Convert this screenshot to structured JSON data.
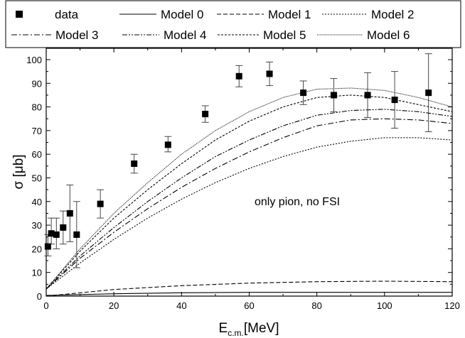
{
  "chart_data": {
    "type": "line",
    "title": "",
    "xlabel": {
      "main": "E",
      "sub": "c.m.",
      "unit": "[MeV]"
    },
    "ylabel": "σ [μb]",
    "xlim": [
      0,
      120
    ],
    "ylim": [
      0,
      105
    ],
    "xticks": [
      0,
      20,
      40,
      60,
      80,
      100,
      120
    ],
    "yticks": [
      0,
      10,
      20,
      30,
      40,
      50,
      60,
      70,
      80,
      90,
      100
    ],
    "grid": false,
    "legend_position": "top",
    "annotation": "only pion, no FSI",
    "data_series": {
      "name": "data",
      "points": [
        {
          "x": 0.5,
          "y": 21,
          "lo": 17,
          "hi": 26
        },
        {
          "x": 1.5,
          "y": 26.5,
          "lo": 22,
          "hi": 33
        },
        {
          "x": 3,
          "y": 26,
          "lo": 20,
          "hi": 33
        },
        {
          "x": 5,
          "y": 29,
          "lo": 22,
          "hi": 36
        },
        {
          "x": 7,
          "y": 35,
          "lo": 23,
          "hi": 47
        },
        {
          "x": 9,
          "y": 26,
          "lo": 12,
          "hi": 40
        },
        {
          "x": 16,
          "y": 39,
          "lo": 33,
          "hi": 45
        },
        {
          "x": 26,
          "y": 56,
          "lo": 52,
          "hi": 60
        },
        {
          "x": 36,
          "y": 64,
          "lo": 61,
          "hi": 67.5
        },
        {
          "x": 47,
          "y": 77,
          "lo": 73.5,
          "hi": 80.5
        },
        {
          "x": 57,
          "y": 93,
          "lo": 88.5,
          "hi": 97.5
        },
        {
          "x": 66,
          "y": 94,
          "lo": 89,
          "hi": 99
        },
        {
          "x": 76,
          "y": 86,
          "lo": 81,
          "hi": 91
        },
        {
          "x": 85,
          "y": 85,
          "lo": 78,
          "hi": 92
        },
        {
          "x": 95,
          "y": 85,
          "lo": 75.5,
          "hi": 94.5
        },
        {
          "x": 103,
          "y": 83,
          "lo": 71,
          "hi": 95
        },
        {
          "x": 113,
          "y": 86,
          "lo": 69.5,
          "hi": 102.5
        }
      ]
    },
    "series": [
      {
        "name": "Model 0",
        "x": [
          0,
          20,
          40,
          60,
          80,
          100,
          120
        ],
        "values": [
          0.3,
          1.0,
          1.4,
          1.6,
          1.6,
          1.6,
          1.6
        ]
      },
      {
        "name": "Model 1",
        "x": [
          0,
          20,
          40,
          60,
          80,
          100,
          120
        ],
        "values": [
          0,
          2.8,
          4.4,
          5.5,
          6.1,
          6.3,
          6.1
        ]
      },
      {
        "name": "Model 2",
        "x": [
          0,
          10,
          20,
          30,
          40,
          50,
          60,
          70,
          80,
          90,
          100,
          110,
          120
        ],
        "values": [
          3,
          14,
          24,
          33,
          41,
          48,
          54,
          59,
          63,
          65.5,
          67,
          67,
          66
        ]
      },
      {
        "name": "Model 3",
        "x": [
          0,
          10,
          20,
          30,
          40,
          50,
          60,
          70,
          80,
          90,
          100,
          110,
          120
        ],
        "values": [
          3,
          16,
          27,
          37,
          46,
          54,
          61,
          67,
          72,
          74.5,
          75,
          74.5,
          73
        ]
      },
      {
        "name": "Model 4",
        "x": [
          0,
          10,
          20,
          30,
          40,
          50,
          60,
          70,
          80,
          90,
          100,
          110,
          120
        ],
        "values": [
          3,
          17,
          29,
          40,
          50,
          59,
          66,
          72,
          76.5,
          78.5,
          79,
          78,
          76
        ]
      },
      {
        "name": "Model 5",
        "x": [
          0,
          10,
          20,
          30,
          40,
          50,
          60,
          70,
          80,
          90,
          100,
          110,
          120
        ],
        "values": [
          3,
          19,
          33,
          45,
          56,
          66,
          74,
          80,
          84,
          85,
          84,
          81,
          78
        ]
      },
      {
        "name": "Model 6",
        "x": [
          0,
          10,
          20,
          30,
          40,
          50,
          60,
          70,
          80,
          90,
          100,
          110,
          120
        ],
        "values": [
          3,
          20,
          35,
          48,
          60,
          70,
          78,
          84,
          87.5,
          88,
          87,
          84,
          80
        ]
      }
    ]
  },
  "legend": [
    {
      "label": "data",
      "kind": "marker"
    },
    {
      "label": "Model 0",
      "kind": "line",
      "dash": "solid"
    },
    {
      "label": "Model 1",
      "kind": "line",
      "dash": "dashed"
    },
    {
      "label": "Model 2",
      "kind": "line",
      "dash": "dotted"
    },
    {
      "label": "Model 3",
      "kind": "line",
      "dash": "dash-dot"
    },
    {
      "label": "Model 4",
      "kind": "line",
      "dash": "dash-dot-dot"
    },
    {
      "label": "Model 5",
      "kind": "line",
      "dash": "short-dash"
    },
    {
      "label": "Model 6",
      "kind": "line",
      "dash": "fine-dot"
    }
  ]
}
